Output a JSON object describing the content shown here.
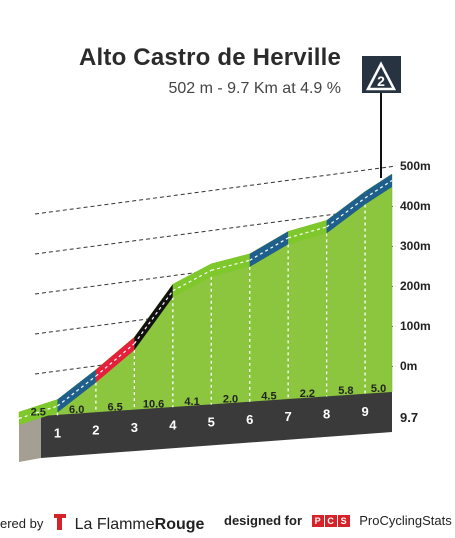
{
  "title": "Alto Castro de Herville",
  "subtitle": "502 m - 9.7 Km at 4.9 %",
  "category_badge": "2",
  "footer": {
    "powered_by": "ered by",
    "brand_part1": "La Flamme",
    "brand_part2": "Rouge",
    "designed_for": "designed for",
    "pcs_letters": [
      "P",
      "C",
      "S"
    ],
    "pcs_name": "ProCyclingStats"
  },
  "chart_data": {
    "type": "area",
    "title": "Alto Castro de Herville",
    "subtitle": "502 m - 9.7 Km at 4.9 %",
    "altitude_axis": {
      "ticks": [
        0,
        100,
        200,
        300,
        400,
        500
      ],
      "tick_labels": [
        "0m",
        "100m",
        "200m",
        "300m",
        "400m",
        "500m"
      ],
      "ylim": [
        -20,
        540
      ]
    },
    "distance_axis": {
      "labels": [
        "1",
        "2",
        "3",
        "4",
        "5",
        "6",
        "7",
        "8",
        "9"
      ],
      "final_label": "9.7",
      "xlim": [
        0,
        9.7
      ]
    },
    "segments": [
      {
        "start_km": 0,
        "end_km": 1,
        "gradient": 2.5,
        "label": "2.5",
        "color": "#7ec82c"
      },
      {
        "start_km": 1,
        "end_km": 2,
        "gradient": 6.0,
        "label": "6.0",
        "color": "#1f5f8b"
      },
      {
        "start_km": 2,
        "end_km": 3,
        "gradient": 6.5,
        "label": "6.5",
        "color": "#e5203a"
      },
      {
        "start_km": 3,
        "end_km": 4,
        "gradient": 10.6,
        "label": "10.6",
        "color": "#111111"
      },
      {
        "start_km": 4,
        "end_km": 5,
        "gradient": 4.1,
        "label": "4.1",
        "color": "#7ec82c"
      },
      {
        "start_km": 5,
        "end_km": 6,
        "gradient": 2.0,
        "label": "2.0",
        "color": "#7ec82c"
      },
      {
        "start_km": 6,
        "end_km": 7,
        "gradient": 4.5,
        "label": "4.5",
        "color": "#1f5f8b"
      },
      {
        "start_km": 7,
        "end_km": 8,
        "gradient": 2.2,
        "label": "2.2",
        "color": "#7ec82c"
      },
      {
        "start_km": 8,
        "end_km": 9,
        "gradient": 5.8,
        "label": "5.8",
        "color": "#1f5f8b"
      },
      {
        "start_km": 9,
        "end_km": 9.7,
        "gradient": 5.0,
        "label": "5.0",
        "color": "#1f5f8b"
      }
    ],
    "colors": {
      "fill": "#8cc63f",
      "fill_dark": "#77b52f",
      "base_band": "#3a3a3a",
      "left_wall": "#a59e92",
      "badge": "#273341"
    }
  }
}
